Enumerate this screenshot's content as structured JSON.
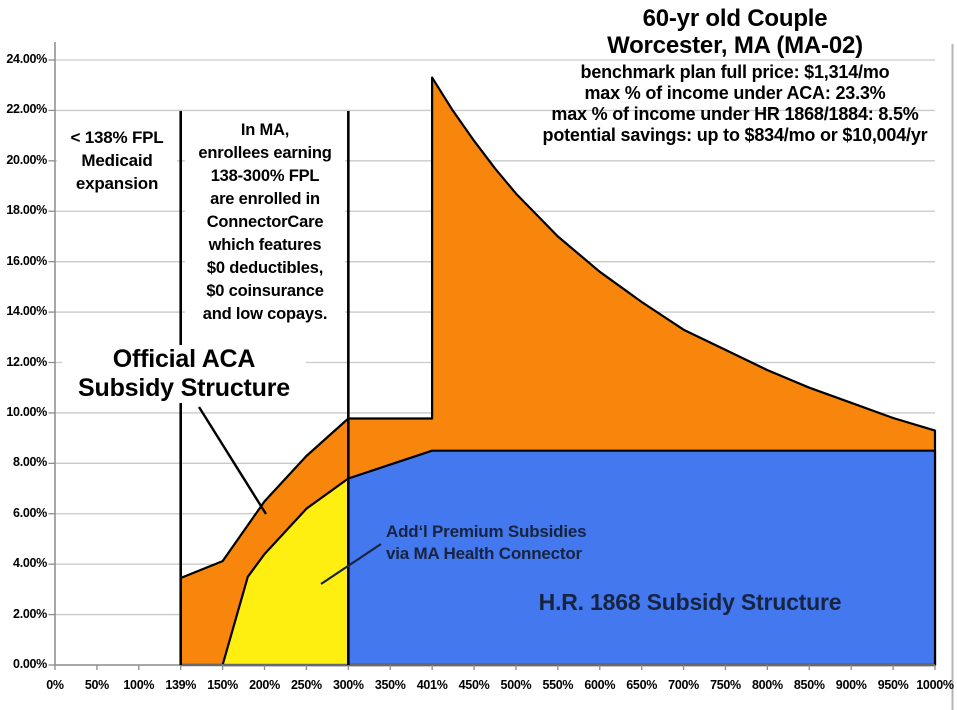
{
  "title": {
    "heading_lines": [
      "60-yr old Couple",
      "Worcester, MA (MA-02)"
    ],
    "detail_lines": [
      "benchmark plan full price: $1,314/mo",
      "max % of income under ACA: 23.3%",
      "max % of income under HR 1868/1884: 8.5%",
      "potential savings: up to $834/mo or $10,004/yr"
    ]
  },
  "annotations": {
    "medicaid_note_lines": [
      "< 138% FPL",
      "Medicaid",
      "expansion"
    ],
    "connectorcare_note_lines": [
      "In MA,",
      "enrollees earning",
      "138-300% FPL",
      "are enrolled in",
      "ConnectorCare",
      "which features",
      "$0 deductibles,",
      "$0 coinsurance",
      "and low copays."
    ],
    "aca_label_lines": [
      "Official ACA",
      "Subsidy Structure"
    ],
    "ma_subsidy_label_lines": [
      "Add‘l Premium Subsidies",
      "via MA Health Connector"
    ],
    "hr1868_label": "H.R. 1868 Subsidy Structure",
    "reference_lines_fpl": [
      139,
      300
    ]
  },
  "colors": {
    "aca_area": "#F8860D",
    "ma_connector_area": "#FFEF10",
    "hr1868_area": "#4478EE",
    "navy_label_text": "#172441",
    "gridline": "#C9C9C9",
    "axis": "#8C8C8C",
    "reference_line": "#000000"
  },
  "chart_data": {
    "type": "area",
    "title": "60-yr old Couple, Worcester, MA (MA-02)",
    "grid": true,
    "x_axis": {
      "tick_labels": [
        "0%",
        "50%",
        "100%",
        "139%",
        "150%",
        "200%",
        "250%",
        "300%",
        "350%",
        "401%",
        "450%",
        "500%",
        "550%",
        "600%",
        "650%",
        "700%",
        "750%",
        "800%",
        "850%",
        "900%",
        "950%",
        "1000%"
      ],
      "tick_values": [
        0,
        50,
        100,
        139,
        150,
        200,
        250,
        300,
        350,
        401,
        450,
        500,
        550,
        600,
        650,
        700,
        750,
        800,
        850,
        900,
        950,
        1000
      ]
    },
    "y_axis": {
      "tick_labels": [
        "0.00%",
        "2.00%",
        "4.00%",
        "6.00%",
        "8.00%",
        "10.00%",
        "12.00%",
        "14.00%",
        "16.00%",
        "18.00%",
        "20.00%",
        "22.00%",
        "24.00%"
      ],
      "tick_values": [
        0,
        2,
        4,
        6,
        8,
        10,
        12,
        14,
        16,
        18,
        20,
        22,
        24
      ],
      "min": 0,
      "max": 24
    },
    "series": [
      {
        "name": "Official ACA Subsidy Structure",
        "color": "#F8860D",
        "stroke": "#000000",
        "points": [
          [
            139,
            3.45
          ],
          [
            150,
            4.12
          ],
          [
            200,
            6.49
          ],
          [
            250,
            8.29
          ],
          [
            300,
            9.78
          ],
          [
            401,
            9.78
          ],
          [
            401,
            23.3
          ],
          [
            425,
            22.0
          ],
          [
            450,
            20.8
          ],
          [
            475,
            19.7
          ],
          [
            500,
            18.7
          ],
          [
            550,
            17.0
          ],
          [
            600,
            15.6
          ],
          [
            650,
            14.4
          ],
          [
            700,
            13.3
          ],
          [
            750,
            12.5
          ],
          [
            800,
            11.7
          ],
          [
            850,
            11.0
          ],
          [
            900,
            10.4
          ],
          [
            950,
            9.8
          ],
          [
            1000,
            9.3
          ]
        ]
      },
      {
        "name": "Add'l Premium Subsidies via MA Health Connector",
        "color": "#FFEF10",
        "stroke": "#000000",
        "points": [
          [
            150,
            0
          ],
          [
            180,
            3.5
          ],
          [
            200,
            4.4
          ],
          [
            250,
            6.2
          ],
          [
            300,
            7.4
          ]
        ]
      },
      {
        "name": "H.R. 1868 Subsidy Structure",
        "color": "#4478EE",
        "stroke": "#000000",
        "points": [
          [
            300,
            7.4
          ],
          [
            350,
            7.95
          ],
          [
            401,
            8.5
          ],
          [
            1000,
            8.5
          ]
        ]
      }
    ]
  }
}
